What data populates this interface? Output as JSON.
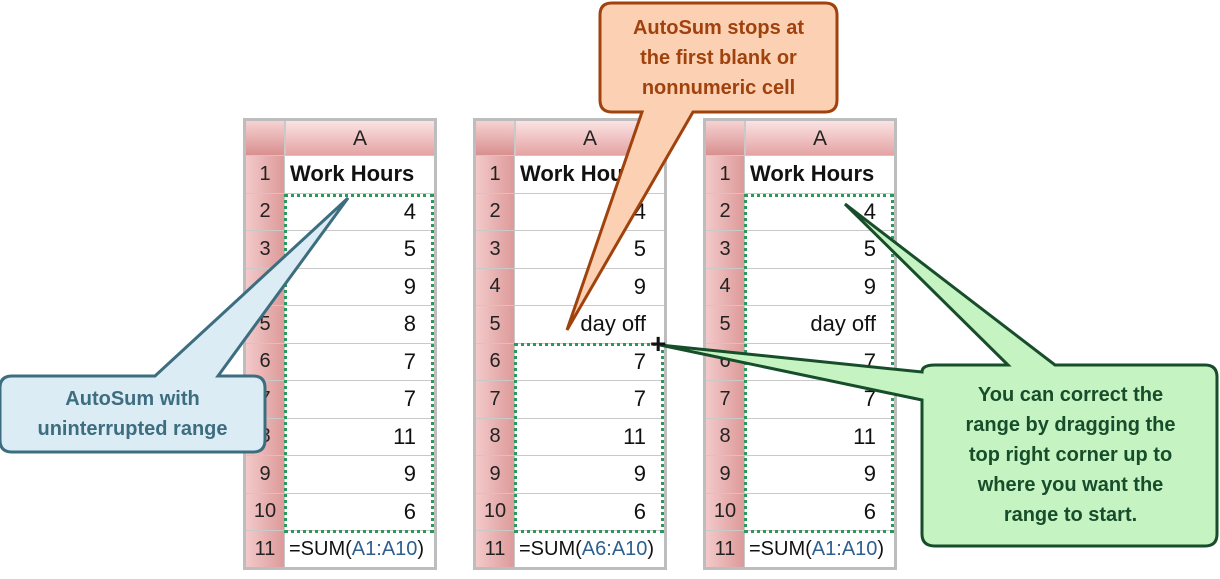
{
  "sheets": [
    {
      "col_header": "A",
      "rows": [
        "1",
        "2",
        "3",
        "4",
        "5",
        "6",
        "7",
        "8",
        "9",
        "10",
        "11"
      ],
      "cells": [
        "Work Hours",
        "4",
        "5",
        "9",
        "8",
        "7",
        "7",
        "11",
        "9",
        "6"
      ],
      "formula_prefix": "=SUM(",
      "formula_ref": "A1:A10",
      "formula_suffix": ")"
    },
    {
      "col_header": "A",
      "rows": [
        "1",
        "2",
        "3",
        "4",
        "5",
        "6",
        "7",
        "8",
        "9",
        "10",
        "11"
      ],
      "cells": [
        "Work Hours",
        "4",
        "5",
        "9",
        "day off",
        "7",
        "7",
        "11",
        "9",
        "6"
      ],
      "formula_prefix": "=SUM(",
      "formula_ref": "A6:A10",
      "formula_suffix": ")"
    },
    {
      "col_header": "A",
      "rows": [
        "1",
        "2",
        "3",
        "4",
        "5",
        "6",
        "7",
        "8",
        "9",
        "10",
        "11"
      ],
      "cells": [
        "Work Hours",
        "4",
        "5",
        "9",
        "day off",
        "7",
        "7",
        "11",
        "9",
        "6"
      ],
      "formula_prefix": "=SUM(",
      "formula_ref": "A1:A10",
      "formula_suffix": ")"
    }
  ],
  "callouts": {
    "left": {
      "lines": [
        "AutoSum with",
        "uninterrupted range"
      ],
      "color": "#3d6e80",
      "fill": "#dcecf5"
    },
    "top": {
      "lines": [
        "AutoSum stops at",
        "the first blank or",
        "nonnumeric cell"
      ],
      "color": "#a0420d",
      "fill": "#fcd1b3"
    },
    "right": {
      "lines": [
        "You can correct the",
        "range by dragging the",
        "top right corner up to",
        "where you want the",
        "range to start."
      ],
      "color": "#174d2a",
      "fill": "#c5f3c2"
    }
  },
  "cursor_glyph": "+"
}
